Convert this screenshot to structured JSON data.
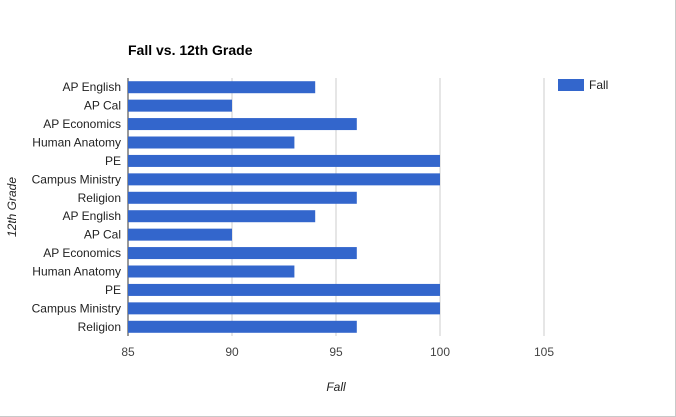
{
  "chart_data": {
    "type": "bar",
    "orientation": "horizontal",
    "title": "Fall vs. 12th Grade",
    "xlabel": "Fall",
    "ylabel": "12th Grade",
    "categories": [
      "AP English",
      "AP Cal",
      "AP Economics",
      "Human Anatomy",
      "PE",
      "Campus Ministry",
      "Religion",
      "AP English",
      "AP Cal",
      "AP Economics",
      "Human Anatomy",
      "PE",
      "Campus Ministry",
      "Religion"
    ],
    "series": [
      {
        "name": "Fall",
        "color": "#3366cc",
        "values": [
          94,
          90,
          96,
          93,
          100,
          100,
          96,
          94,
          90,
          96,
          93,
          100,
          100,
          96
        ]
      }
    ],
    "xlim": [
      85,
      105
    ],
    "xticks": [
      "85",
      "90",
      "95",
      "100",
      "105"
    ],
    "grid": true,
    "legend_position": "right"
  }
}
